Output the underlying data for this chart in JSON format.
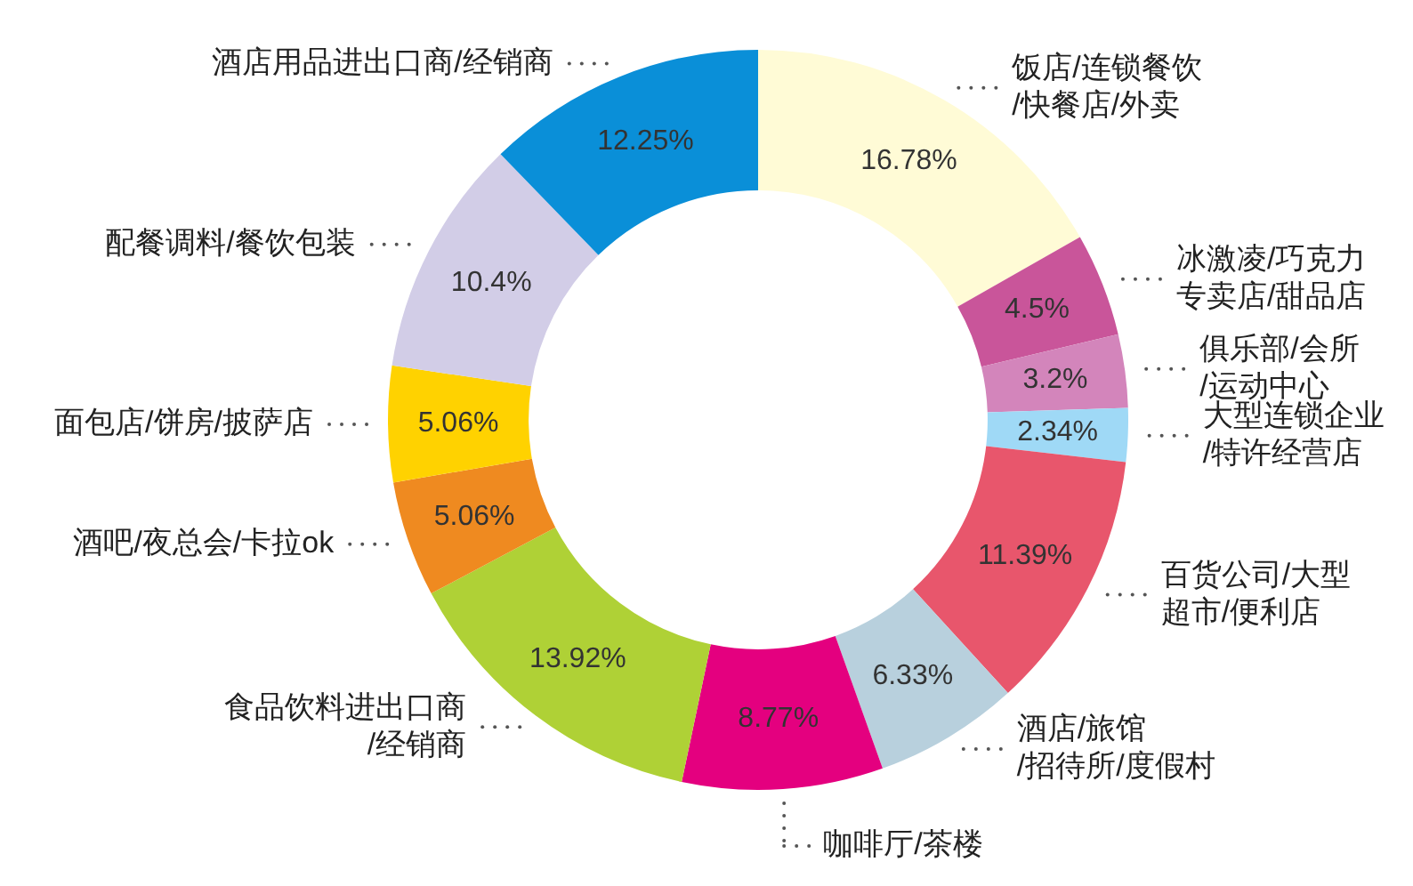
{
  "chart_data": {
    "type": "donut",
    "categories": [
      "饭店/连锁餐饮\n/快餐店/外卖",
      "冰激凌/巧克力专卖店/甜品店",
      "俱乐部/会所\n/运动中心",
      "大型连锁企业\n/特许经营店",
      "百货公司/大型超市/便利店",
      "酒店/旅馆\n/招待所/度假村",
      "咖啡厅/茶楼",
      "食品饮料进出口商\n/经销商",
      "酒吧/夜总会/卡拉ok",
      "面包店/饼房/披萨店",
      "配餐调料/餐饮包装",
      "酒店用品进出口商/经销商"
    ],
    "values": [
      16.78,
      4.5,
      3.2,
      2.34,
      11.39,
      6.33,
      8.77,
      13.92,
      5.06,
      5.06,
      10.4,
      12.25
    ],
    "value_labels": [
      "16.78%",
      "4.5%",
      "3.2%",
      "2.34%",
      "11.39%",
      "6.33%",
      "8.77%",
      "13.92%",
      "5.06%",
      "5.06%",
      "10.4%",
      "12.25%"
    ],
    "colors": [
      "#fffbd6",
      "#c9559a",
      "#d385bb",
      "#9fd9f6",
      "#e8566c",
      "#b8d0dd",
      "#e4007f",
      "#afd136",
      "#ef8a20",
      "#ffd200",
      "#d2cde7",
      "#0a8fd8"
    ],
    "legend": false
  }
}
